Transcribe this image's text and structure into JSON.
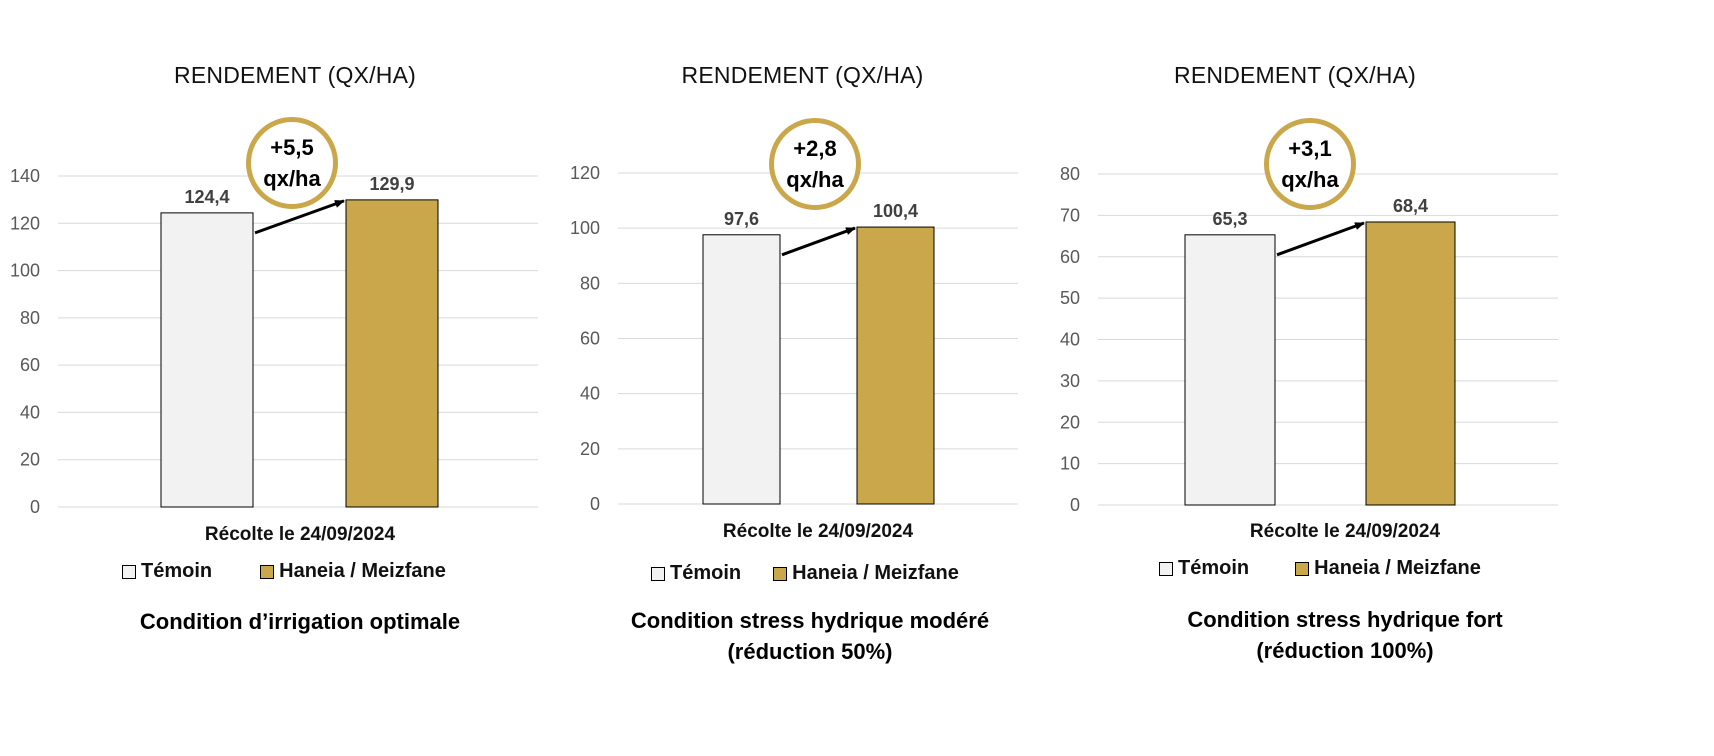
{
  "colors": {
    "control": "#f2f2f2",
    "treated": "#c9a74a",
    "grid": "#d9d9d9",
    "arrow": "#000000",
    "badge_ring": "#c9a74a"
  },
  "legend": {
    "control_label": "Témoin",
    "treated_label": "Haneia / Meizfane"
  },
  "chart_data": [
    {
      "type": "bar",
      "title": "RENDEMENT (QX/HA)",
      "xlabel": "Récolte le 24/09/2024",
      "categories": [
        "Témoin",
        "Haneia / Meizfane"
      ],
      "values": [
        124.4,
        129.9
      ],
      "value_labels": [
        "124,4",
        "129,9"
      ],
      "ylim": [
        0,
        140
      ],
      "yticks": [
        0,
        20,
        40,
        60,
        80,
        100,
        120,
        140
      ],
      "gain_line1": "+5,5",
      "gain_line2": "qx/ha",
      "caption_line1": "Condition d’irrigation optimale",
      "caption_line2": "",
      "grid": true,
      "legend_position": "bottom"
    },
    {
      "type": "bar",
      "title": "RENDEMENT (QX/HA)",
      "xlabel": "Récolte le 24/09/2024",
      "categories": [
        "Témoin",
        "Haneia / Meizfane"
      ],
      "values": [
        97.6,
        100.4
      ],
      "value_labels": [
        "97,6",
        "100,4"
      ],
      "ylim": [
        0,
        120
      ],
      "yticks": [
        0,
        20,
        40,
        60,
        80,
        100,
        120
      ],
      "gain_line1": "+2,8",
      "gain_line2": "qx/ha",
      "caption_line1": "Condition stress hydrique modéré",
      "caption_line2": "(réduction 50%)",
      "grid": true,
      "legend_position": "bottom"
    },
    {
      "type": "bar",
      "title": "RENDEMENT (QX/HA)",
      "xlabel": "Récolte le 24/09/2024",
      "categories": [
        "Témoin",
        "Haneia / Meizfane"
      ],
      "values": [
        65.3,
        68.4
      ],
      "value_labels": [
        "65,3",
        "68,4"
      ],
      "ylim": [
        0,
        80
      ],
      "yticks": [
        0,
        10,
        20,
        30,
        40,
        50,
        60,
        70,
        80
      ],
      "gain_line1": "+3,1",
      "gain_line2": "qx/ha",
      "caption_line1": "Condition stress hydrique fort",
      "caption_line2": "(réduction 100%)",
      "grid": true,
      "legend_position": "bottom"
    }
  ]
}
